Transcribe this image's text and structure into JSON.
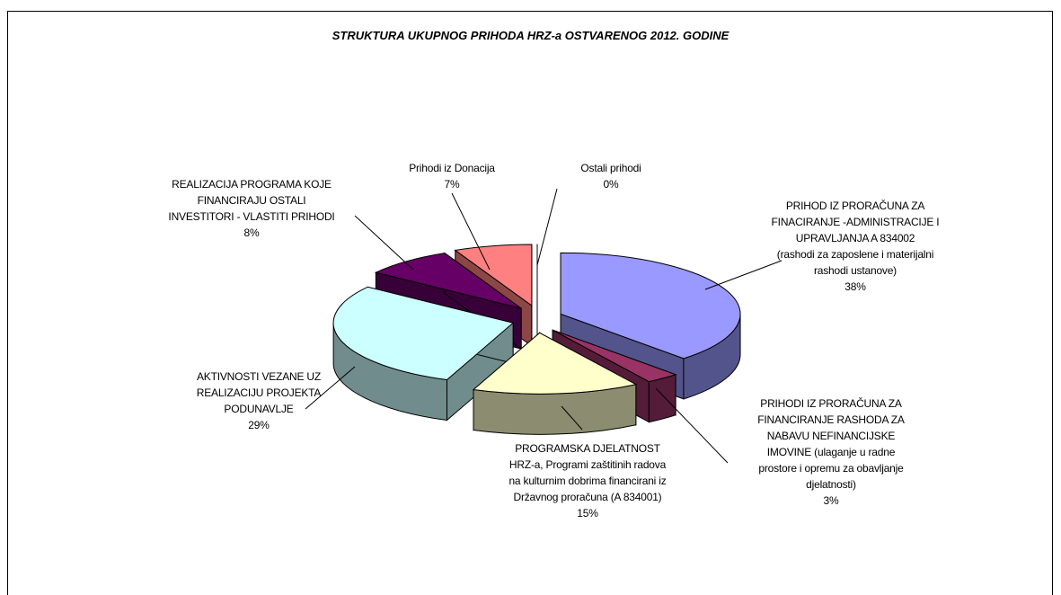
{
  "chart_data": {
    "type": "pie",
    "title": "STRUKTURA UKUPNOG PRIHODA HRZ-a OSTVARENOG 2012. GODINE",
    "categories": [
      "PRIHOD IZ PRORAČUNA ZA\nFINACIRANJE -ADMINISTRACIJE I\nUPRAVLJANJA A 834002\n(rashodi za zaposlene i materijalni\nrashodi ustanove)",
      "PRIHODI IZ PRORAČUNA ZA\nFINANCIRANJE RASHODA ZA\nNABAVU NEFINANCIJSKE\nIMOVINE (ulaganje u radne\nprostore i opremu za obavljanje\ndjelatnosti)",
      "PROGRAMSKA DJELATNOST\nHRZ-a, Programi zaštitinih radova\nna kulturnim dobrima financirani iz\nDržavnog proračuna (A 834001)",
      "AKTIVNOSTI VEZANE UZ\nREALIZACIJU PROJEKTA\nPODUNAVLJE",
      "REALIZACIJA PROGRAMA KOJE\nFINANCIRAJU OSTALI\nINVESTITORI -  VLASTITI PRIHODI",
      "Prihodi iz Donacija",
      "Ostali prihodi"
    ],
    "values": [
      38,
      3,
      15,
      29,
      8,
      7,
      0
    ],
    "value_labels": [
      "38%",
      "3%",
      "15%",
      "29%",
      "8%",
      "7%",
      "0%"
    ],
    "colors": [
      "#9999ff",
      "#993366",
      "#ffffcc",
      "#ccffff",
      "#660066",
      "#ff8080",
      "#ffffff"
    ]
  }
}
